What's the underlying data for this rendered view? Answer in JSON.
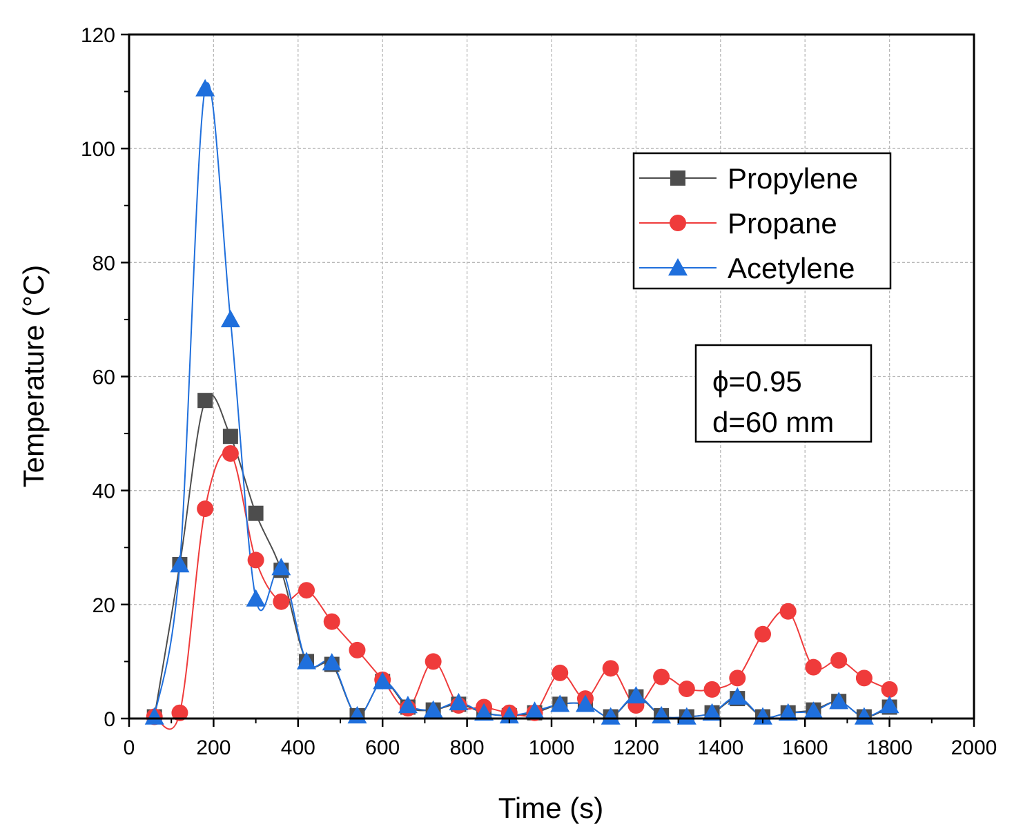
{
  "chart_data": {
    "type": "line",
    "title": "",
    "xlabel": "Time (s)",
    "ylabel": "Temperature (°C)",
    "xlim": [
      0,
      2000
    ],
    "ylim": [
      0,
      120
    ],
    "xticks": [
      0,
      200,
      400,
      600,
      800,
      1000,
      1200,
      1400,
      1600,
      1800,
      2000
    ],
    "yticks": [
      0,
      20,
      40,
      60,
      80,
      100,
      120
    ],
    "grid": true,
    "legend_position": "top-right",
    "series": [
      {
        "name": "Propylene",
        "color": "#4d4d4d",
        "marker": "square",
        "x": [
          60,
          120,
          180,
          240,
          300,
          360,
          420,
          480,
          540,
          600,
          660,
          720,
          780,
          840,
          900,
          960,
          1020,
          1080,
          1140,
          1200,
          1260,
          1320,
          1380,
          1440,
          1500,
          1560,
          1620,
          1680,
          1740,
          1800
        ],
        "values": [
          0.3,
          27,
          55.8,
          49.5,
          36,
          26,
          10,
          9.5,
          0.5,
          6.5,
          2,
          1.5,
          2.5,
          1,
          0.5,
          1,
          2.5,
          2.5,
          0.3,
          3.8,
          0.5,
          0.3,
          1,
          3.5,
          0.3,
          1,
          1.5,
          3,
          0.3,
          2
        ]
      },
      {
        "name": "Propane",
        "color": "#ef3b3b",
        "marker": "circle",
        "x": [
          60,
          120,
          180,
          240,
          300,
          360,
          420,
          480,
          540,
          600,
          660,
          720,
          780,
          840,
          900,
          960,
          1020,
          1080,
          1140,
          1200,
          1260,
          1320,
          1380,
          1440,
          1500,
          1560,
          1620,
          1680,
          1740,
          1800
        ],
        "values": [
          0.3,
          1,
          36.8,
          46.5,
          27.8,
          20.5,
          22.5,
          17,
          12,
          6.8,
          1.8,
          10,
          2.3,
          2,
          1,
          1,
          8,
          3.5,
          8.8,
          2.3,
          7.3,
          5.2,
          5.1,
          7.1,
          14.8,
          18.8,
          9,
          10.2,
          7.1,
          5.1
        ]
      },
      {
        "name": "Acetylene",
        "color": "#1f6fdc",
        "marker": "triangle",
        "x": [
          60,
          120,
          180,
          240,
          300,
          360,
          420,
          480,
          540,
          600,
          660,
          720,
          780,
          840,
          900,
          960,
          1020,
          1080,
          1140,
          1200,
          1260,
          1320,
          1380,
          1440,
          1500,
          1560,
          1620,
          1680,
          1740,
          1800
        ],
        "values": [
          0.3,
          27,
          110.5,
          70,
          21,
          26.5,
          10,
          9.8,
          0.5,
          6.5,
          2.3,
          1.5,
          2.8,
          1,
          0.5,
          1.3,
          2.5,
          2.5,
          0.3,
          4,
          0.5,
          0.3,
          1,
          3.8,
          0.3,
          1,
          1.3,
          3,
          0.3,
          2.3
        ]
      }
    ],
    "annotation": [
      "ϕ=0.95",
      "d=60 mm"
    ]
  }
}
